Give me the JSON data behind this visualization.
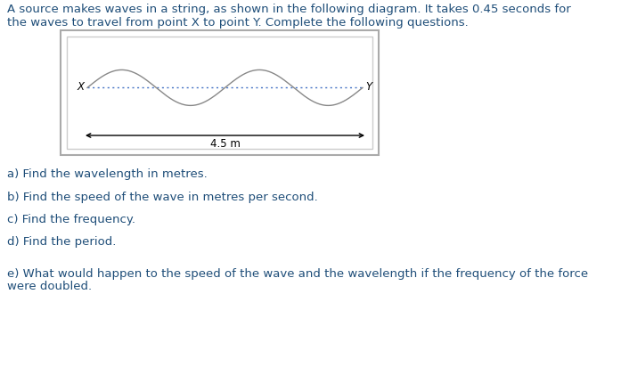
{
  "title_line1": "A source makes waves in a string, as shown in the following diagram. It takes 0.45 seconds for",
  "title_line2": "the waves to travel from point X to point Y. Complete the following questions.",
  "text_color": "#1f4e79",
  "title_fontsize": 9.5,
  "wave_color": "#888888",
  "dotted_line_color": "#4472c4",
  "distance_label": "4.5 m",
  "point_x_label": "X",
  "point_y_label": "Y",
  "q_fontsize": 9.5,
  "background_color": "#ffffff",
  "box_outer_color": "#aaaaaa",
  "box_inner_color": "#cccccc",
  "arrow_color": "#000000",
  "wave_amplitude": 20,
  "wave_linewidth": 1.0,
  "dotted_linewidth": 1.0,
  "q_texts": [
    "a) Find the wavelength in metres.",
    "b) Find the speed of the wave in metres per second.",
    "c) Find the frequency.",
    "d) Find the period.",
    "e) What would happen to the speed of the wave and the wavelength if the frequency of the force",
    "were doubled."
  ],
  "q_y_positions": [
    233,
    207,
    182,
    157,
    121,
    107
  ]
}
